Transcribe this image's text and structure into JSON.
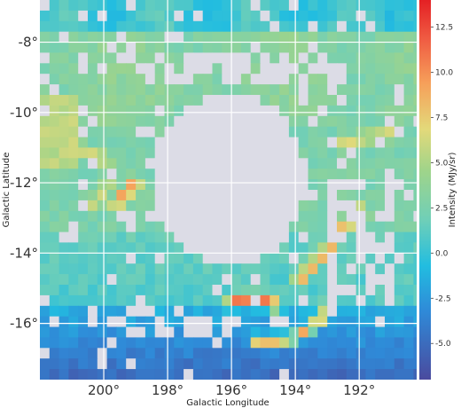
{
  "chart_data": {
    "type": "heatmap",
    "title": "",
    "xlabel": "Galactic Longitude",
    "ylabel": "Galactic Latitude",
    "x_ticks": [
      "200°",
      "198°",
      "196°",
      "194°",
      "192°"
    ],
    "x_tick_values": [
      200,
      198,
      196,
      194,
      192
    ],
    "y_ticks": [
      "-8°",
      "-10°",
      "-12°",
      "-14°",
      "-16°"
    ],
    "y_tick_values": [
      -8,
      -10,
      -12,
      -14,
      -16
    ],
    "xlim": [
      202.0,
      190.2
    ],
    "ylim": [
      -17.6,
      -6.8
    ],
    "grid": true,
    "colorbar": {
      "label": "Intensity (MJy/sr)",
      "range": [
        -7.0,
        14.0
      ],
      "ticks": [
        "12.5",
        "10.0",
        "7.5",
        "5.0",
        "2.5",
        "0.0",
        "-2.5",
        "-5.0"
      ],
      "tick_values": [
        12.5,
        10.0,
        7.5,
        5.0,
        2.5,
        0.0,
        -2.5,
        -5.0
      ],
      "colormap": "blue-cyan-green-yellow-orange-red"
    },
    "missing_color": "#dcdce6",
    "mask": "central region approx l 193.5–198.5°, b -14.5 to -9.5 is blank (no data)",
    "ridges": [
      {
        "name": "",
        "points": [
          [
            201.0,
            -11.0
          ],
          [
            200.6,
            -11.1
          ],
          [
            200.0,
            -11.3
          ],
          [
            199.8,
            -11.8
          ],
          [
            200.0,
            -12.4
          ],
          [
            200.3,
            -12.6
          ]
        ],
        "peak": 6.5
      },
      {
        "name": "",
        "points": [
          [
            199.0,
            -12.0
          ],
          [
            199.3,
            -12.3
          ],
          [
            199.6,
            -12.6
          ]
        ],
        "peak": 10.5
      },
      {
        "name": "",
        "points": [
          [
            192.5,
            -10.9
          ],
          [
            191.8,
            -10.7
          ],
          [
            191.0,
            -10.6
          ]
        ],
        "peak": 6.8
      },
      {
        "name": "",
        "points": [
          [
            196.0,
            -15.4
          ],
          [
            195.5,
            -15.3
          ],
          [
            195.0,
            -15.3
          ],
          [
            194.6,
            -15.5
          ]
        ],
        "peak": 11.0
      },
      {
        "name": "",
        "points": [
          [
            195.2,
            -16.5
          ],
          [
            194.6,
            -16.5
          ],
          [
            194.0,
            -16.4
          ],
          [
            193.5,
            -16.1
          ],
          [
            193.1,
            -15.8
          ],
          [
            192.9,
            -15.3
          ],
          [
            192.8,
            -14.8
          ]
        ],
        "peak": 9.0
      },
      {
        "name": "",
        "points": [
          [
            193.9,
            -14.8
          ],
          [
            193.4,
            -14.3
          ],
          [
            192.9,
            -13.8
          ],
          [
            192.4,
            -13.2
          ],
          [
            191.9,
            -12.8
          ]
        ],
        "peak": 9.5
      }
    ]
  }
}
